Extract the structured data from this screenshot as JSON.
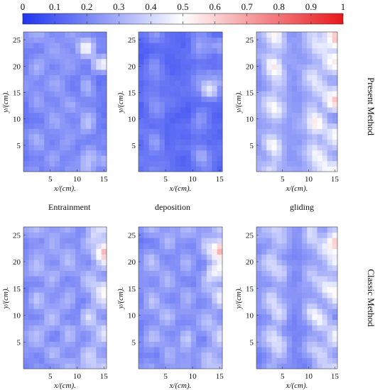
{
  "colorbar": {
    "ticks": [
      "0",
      "0.1",
      "0.2",
      "0.3",
      "0.4",
      "0.5",
      "0.6",
      "0.7",
      "0.8",
      "0.9",
      "1"
    ],
    "min": 0,
    "max": 1,
    "colors": [
      "#1f35f0",
      "#ffffff",
      "#e8171c"
    ]
  },
  "labels": {
    "entrainment": "Entrainment",
    "deposition": "deposition",
    "gliding": "gliding",
    "present_method": "Present Method",
    "classic_method": "Classic Method"
  },
  "chart_data": [
    {
      "type": "heatmap",
      "row": "Present Method",
      "column": "Entrainment",
      "xlabel": "x/(cm).",
      "ylabel": "y/(cm).",
      "xlim": [
        0,
        15.5
      ],
      "ylim": [
        0,
        26.5
      ],
      "xticks": [
        5,
        10,
        15
      ],
      "yticks": [
        5,
        10,
        15,
        20,
        25
      ],
      "grid_cols": 16,
      "grid_rows": 26,
      "base_level": 0.18,
      "stripes": [
        {
          "x": 2.5,
          "amp": 0.25
        },
        {
          "x": 5.5,
          "amp": 0.2
        },
        {
          "x": 8.5,
          "amp": 0.2
        },
        {
          "x": 12.0,
          "amp": 0.3
        }
      ],
      "hotspots": [
        {
          "x": 11.8,
          "y": 23.5,
          "r": 1.2,
          "v": 0.95
        },
        {
          "x": 14.3,
          "y": 20.5,
          "r": 1.2,
          "v": 0.85
        },
        {
          "x": 15.2,
          "y": 2.0,
          "r": 0.8,
          "v": 0.7
        }
      ],
      "noise": 0.18,
      "seed": 11
    },
    {
      "type": "heatmap",
      "row": "Present Method",
      "column": "deposition",
      "xlabel": "x/(cm).",
      "ylabel": "y/(cm).",
      "xlim": [
        0,
        15.5
      ],
      "ylim": [
        0,
        26.5
      ],
      "xticks": [
        5,
        10,
        15
      ],
      "yticks": [
        5,
        10,
        15,
        20,
        25
      ],
      "grid_cols": 16,
      "grid_rows": 26,
      "base_level": 0.14,
      "stripes": [
        {
          "x": 3.0,
          "amp": 0.22
        },
        {
          "x": 11.5,
          "amp": 0.25
        }
      ],
      "hotspots": [
        {
          "x": 13.2,
          "y": 15.5,
          "r": 1.1,
          "v": 0.95
        },
        {
          "x": 14.0,
          "y": 18.0,
          "r": 0.8,
          "v": 0.7
        },
        {
          "x": 14.2,
          "y": 24.0,
          "r": 0.9,
          "v": 0.55
        }
      ],
      "noise": 0.16,
      "seed": 23
    },
    {
      "type": "heatmap",
      "row": "Present Method",
      "column": "gliding",
      "xlabel": "x/(cm).",
      "ylabel": "y/(cm).",
      "xlim": [
        0,
        15.5
      ],
      "ylim": [
        0,
        26.5
      ],
      "xticks": [
        5,
        10,
        15
      ],
      "yticks": [
        5,
        10,
        15,
        20,
        25
      ],
      "grid_cols": 16,
      "grid_rows": 26,
      "base_level": 0.25,
      "stripes": [
        {
          "x": 2.5,
          "amp": 0.35
        },
        {
          "x": 4.0,
          "amp": 0.3
        },
        {
          "x": 10.5,
          "amp": 0.3
        },
        {
          "x": 12.2,
          "amp": 0.35
        },
        {
          "x": 14.3,
          "amp": 0.4
        }
      ],
      "hotspots": [
        {
          "x": 3.5,
          "y": 20.0,
          "r": 1.3,
          "v": 0.85
        },
        {
          "x": 11.0,
          "y": 9.0,
          "r": 1.2,
          "v": 0.85
        },
        {
          "x": 14.6,
          "y": 13.0,
          "r": 1.4,
          "v": 0.9
        },
        {
          "x": 14.8,
          "y": 25.0,
          "r": 1.3,
          "v": 0.95
        }
      ],
      "noise": 0.2,
      "seed": 37
    },
    {
      "type": "heatmap",
      "row": "Classic Method",
      "column": "Entrainment",
      "xlabel": "x/(cm).",
      "ylabel": "y/(cm).",
      "xlim": [
        0,
        15.5
      ],
      "ylim": [
        0,
        26.5
      ],
      "xticks": [
        5,
        10,
        15
      ],
      "yticks": [
        5,
        10,
        15,
        20,
        25
      ],
      "grid_cols": 16,
      "grid_rows": 26,
      "base_level": 0.2,
      "stripes": [
        {
          "x": 2.5,
          "amp": 0.28
        },
        {
          "x": 5.5,
          "amp": 0.25
        },
        {
          "x": 8.5,
          "amp": 0.25
        },
        {
          "x": 12.0,
          "amp": 0.3
        },
        {
          "x": 14.5,
          "amp": 0.35
        }
      ],
      "hotspots": [
        {
          "x": 14.8,
          "y": 22.0,
          "r": 1.3,
          "v": 0.95
        },
        {
          "x": 14.5,
          "y": 15.0,
          "r": 1.2,
          "v": 0.85
        },
        {
          "x": 12.0,
          "y": 10.0,
          "r": 1.0,
          "v": 0.85
        },
        {
          "x": 13.5,
          "y": 25.0,
          "r": 0.9,
          "v": 0.75
        }
      ],
      "noise": 0.18,
      "seed": 51
    },
    {
      "type": "heatmap",
      "row": "Classic Method",
      "column": "deposition",
      "xlabel": "x/(cm).",
      "ylabel": "y/(cm).",
      "xlim": [
        0,
        15.5
      ],
      "ylim": [
        0,
        26.5
      ],
      "xticks": [
        5,
        10,
        15
      ],
      "yticks": [
        5,
        10,
        15,
        20,
        25
      ],
      "grid_cols": 16,
      "grid_rows": 26,
      "base_level": 0.2,
      "stripes": [
        {
          "x": 2.5,
          "amp": 0.3
        },
        {
          "x": 5.5,
          "amp": 0.25
        },
        {
          "x": 9.0,
          "amp": 0.25
        },
        {
          "x": 12.5,
          "amp": 0.3
        },
        {
          "x": 14.8,
          "amp": 0.35
        }
      ],
      "hotspots": [
        {
          "x": 15.0,
          "y": 22.5,
          "r": 1.3,
          "v": 0.95
        },
        {
          "x": 14.0,
          "y": 18.0,
          "r": 1.1,
          "v": 0.9
        }
      ],
      "noise": 0.16,
      "seed": 67
    },
    {
      "type": "heatmap",
      "row": "Classic Method",
      "column": "gliding",
      "xlabel": "x/(cm).",
      "ylabel": "y/(cm).",
      "xlim": [
        0,
        15.5
      ],
      "ylim": [
        0,
        26.5
      ],
      "xticks": [
        5,
        10,
        15
      ],
      "yticks": [
        5,
        10,
        15,
        20,
        25
      ],
      "grid_cols": 16,
      "grid_rows": 26,
      "base_level": 0.22,
      "stripes": [
        {
          "x": 2.5,
          "amp": 0.3
        },
        {
          "x": 4.5,
          "amp": 0.3
        },
        {
          "x": 10.5,
          "amp": 0.3
        },
        {
          "x": 12.5,
          "amp": 0.32
        },
        {
          "x": 14.8,
          "amp": 0.38
        }
      ],
      "hotspots": [
        {
          "x": 14.8,
          "y": 23.5,
          "r": 1.3,
          "v": 0.95
        },
        {
          "x": 14.0,
          "y": 15.0,
          "r": 1.1,
          "v": 0.85
        },
        {
          "x": 11.0,
          "y": 9.5,
          "r": 1.0,
          "v": 0.85
        },
        {
          "x": 3.5,
          "y": 6.5,
          "r": 0.9,
          "v": 0.75
        }
      ],
      "noise": 0.2,
      "seed": 83
    }
  ]
}
